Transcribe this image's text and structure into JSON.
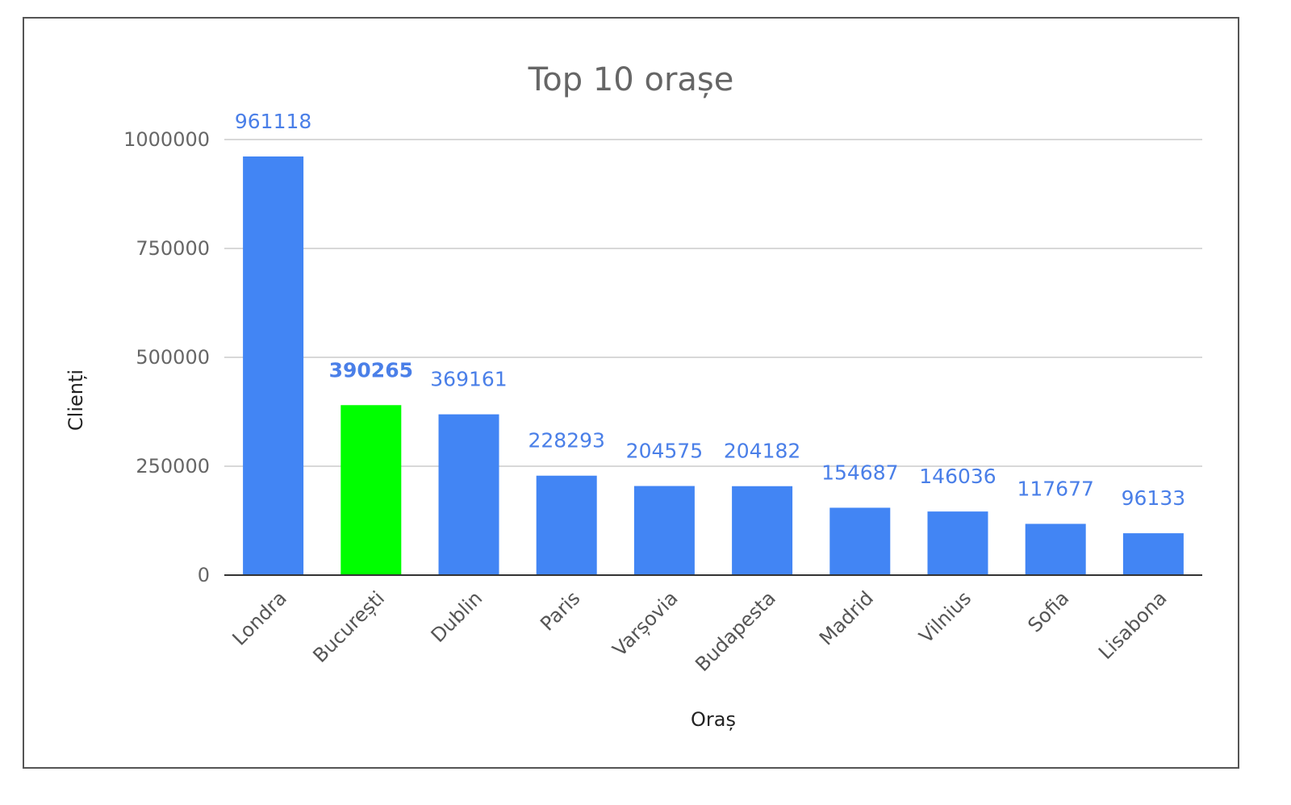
{
  "chart_data": {
    "type": "bar",
    "title": "Top 10 orașe",
    "xlabel": "Oraș",
    "ylabel": "Clienți",
    "categories": [
      "Londra",
      "București",
      "Dublin",
      "Paris",
      "Varșovia",
      "Budapesta",
      "Madrid",
      "Vilnius",
      "Sofia",
      "Lisabona"
    ],
    "values": [
      961118,
      390265,
      369161,
      228293,
      204575,
      204182,
      154687,
      146036,
      117677,
      96133
    ],
    "data_labels": [
      "961118",
      "390265",
      "369161",
      "228293",
      "204575",
      "204182",
      "154687",
      "146036",
      "117677",
      "96133"
    ],
    "highlighted_category": "București",
    "yticks": [
      0,
      250000,
      500000,
      750000,
      1000000
    ],
    "ytick_labels": [
      "0",
      "250000",
      "500000",
      "750000",
      "1000000"
    ],
    "ylim": [
      0,
      1000000
    ],
    "grid": true,
    "legend": "none",
    "colors": {
      "bar": "#4285f4",
      "highlight": "#00ff00",
      "data_label": "#4a7fe8",
      "grid": "#cccccc",
      "baseline": "#333333",
      "frame": "#555555"
    }
  }
}
